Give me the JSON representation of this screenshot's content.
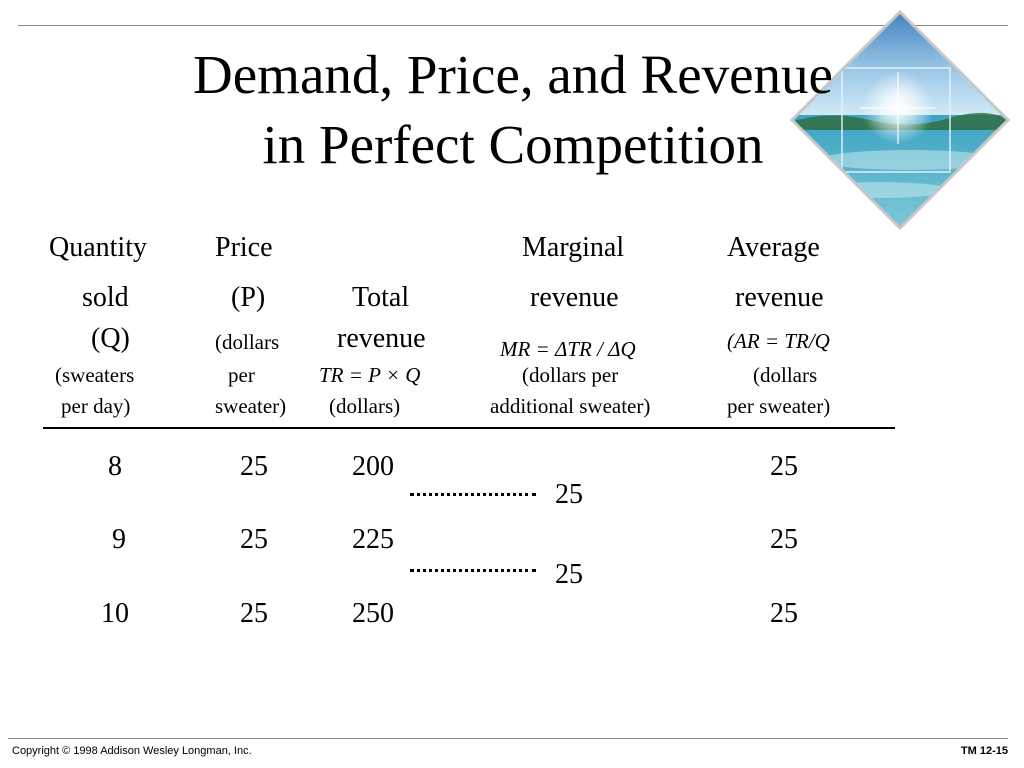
{
  "title": {
    "line1": "Demand, Price, and Revenue",
    "line2": "in Perfect Competition"
  },
  "headers": {
    "quantity": {
      "line1": "Quantity",
      "line2": "sold",
      "line3": "(Q)",
      "unit1": "(sweaters",
      "unit2": "per day)"
    },
    "price": {
      "line1": "Price",
      "line2": "(P)",
      "unit1": "(dollars",
      "unit2": "per",
      "unit3": "sweater)"
    },
    "total_revenue": {
      "line1": "Total",
      "line2": "revenue",
      "formula": "TR = P × Q",
      "unit": "(dollars)"
    },
    "marginal_revenue": {
      "line1": "Marginal",
      "line2": "revenue",
      "formula": "MR = ΔTR / ΔQ",
      "unit1": "(dollars per",
      "unit2": "additional sweater)"
    },
    "average_revenue": {
      "line1": "Average",
      "line2": "revenue",
      "formula": "(AR = TR/Q",
      "unit1": "(dollars",
      "unit2": "per sweater)"
    }
  },
  "rows": [
    {
      "quantity": "8",
      "price": "25",
      "total_revenue": "200",
      "average_revenue": "25"
    },
    {
      "quantity": "9",
      "price": "25",
      "total_revenue": "225",
      "average_revenue": "25"
    },
    {
      "quantity": "10",
      "price": "25",
      "total_revenue": "250",
      "average_revenue": "25"
    }
  ],
  "marginal_values": [
    "25",
    "25"
  ],
  "footer": {
    "copyright": "Copyright © 1998 Addison Wesley Longman, Inc.",
    "slide_id": "TM 12-15"
  },
  "colors": {
    "rule": "#8a8a8a",
    "sky": "#6aa6d6",
    "sea": "#3a8fb0"
  }
}
